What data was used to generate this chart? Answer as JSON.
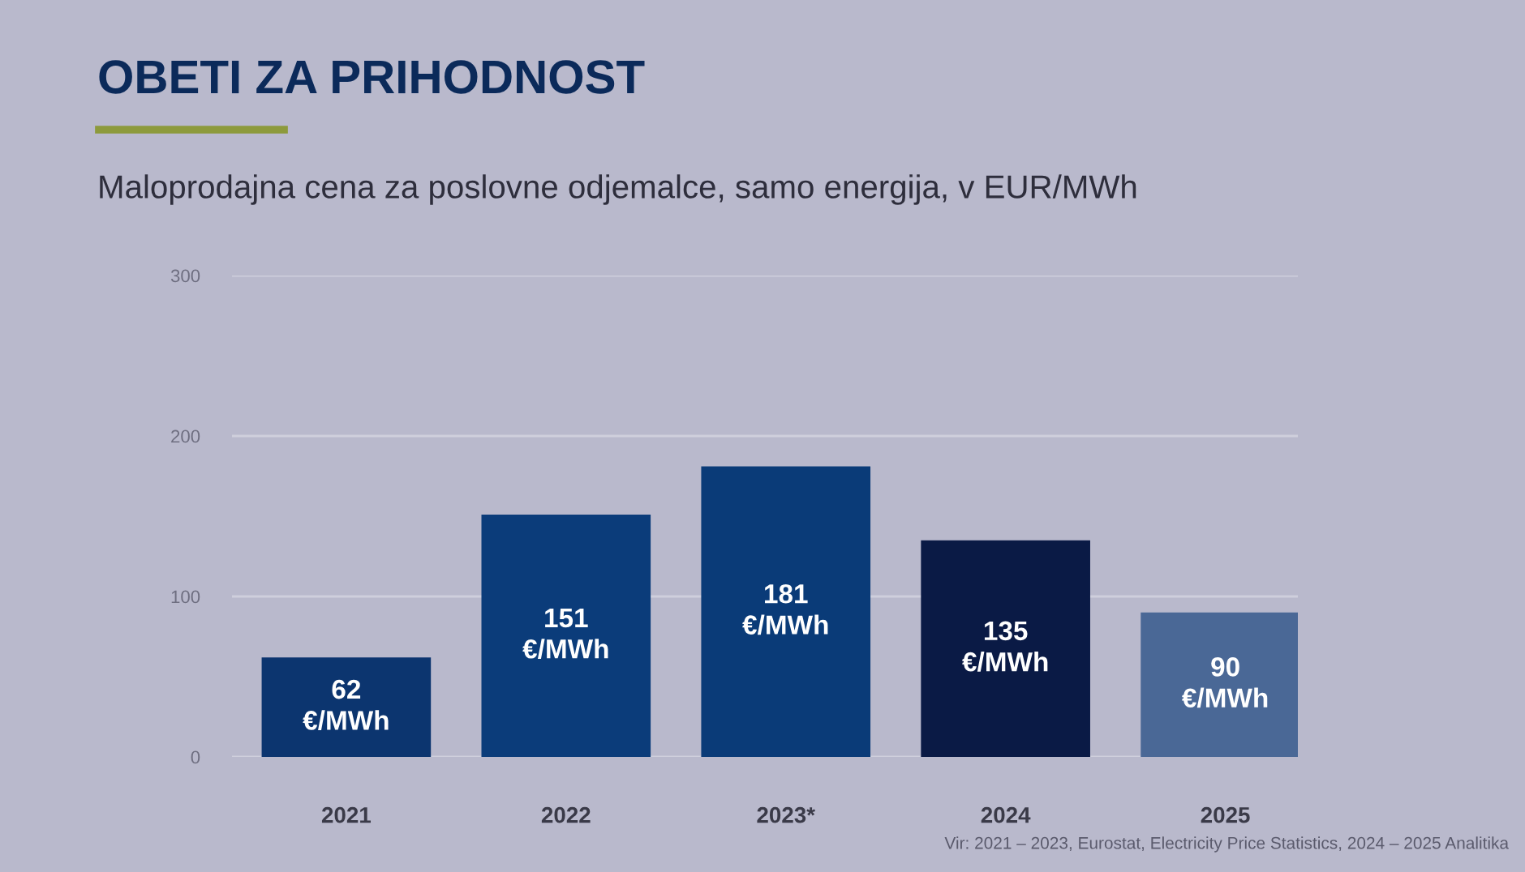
{
  "chart_data": {
    "type": "bar",
    "title": "OBETI ZA PRIHODNOST",
    "subtitle": "Maloprodajna cena za poslovne odjemalce, samo energija, v EUR/MWh",
    "categories": [
      "2021",
      "2022",
      "2023*",
      "2024",
      "2025"
    ],
    "values": [
      62,
      151,
      181,
      135,
      90
    ],
    "colors": [
      "#0c356f",
      "#0b3c7a",
      "#0a3b78",
      "#0a1a45",
      "#4a6896"
    ],
    "value_labels": [
      "62\n€/MWh",
      "151\n€/MWh",
      "181\n€/MWh",
      "135\n€/MWh",
      "90\n€/MWh"
    ],
    "ylim": [
      0,
      300
    ],
    "yticks": [
      0,
      100,
      200,
      300
    ],
    "grid": "y",
    "legend": false,
    "annotations": [
      "Vir: 2021 – 2023, Eurostat, Electricity Price Statistics, 2024 – 2025 Analitika"
    ]
  }
}
